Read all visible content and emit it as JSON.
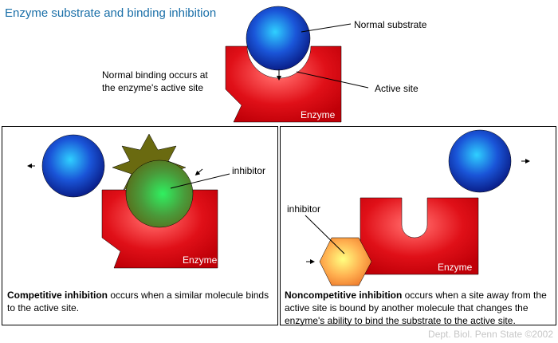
{
  "title": "Enzyme substrate and binding inhibition",
  "top": {
    "normal_substrate_label": "Normal substrate",
    "active_site_label": "Active site",
    "normal_binding_note": "Normal binding occurs at the enzyme's active site",
    "enzyme_label": "Enzyme"
  },
  "competitive": {
    "inhibitor_label": "inhibitor",
    "enzyme_label": "Enzyme",
    "caption_bold": "Competitive inhibition",
    "caption_rest": " occurs when a similar molecule binds to the active site."
  },
  "noncompetitive": {
    "inhibitor_label": "inhibitor",
    "enzyme_label": "Enzyme",
    "caption_bold": "Noncompetitive inhibition",
    "caption_rest": " occurs when a site away from the active site is bound by another molecule that changes the enzyme's ability to bind the substrate to the active site."
  },
  "credit": "Dept. Biol. Penn State ©2002",
  "colors": {
    "enzyme": "#e0141a",
    "substrate": "#1a4fd0",
    "comp_inhibitor": "#5a8a2a",
    "noncomp_inhibitor": "#f5a040",
    "title": "#1a6fa8"
  }
}
